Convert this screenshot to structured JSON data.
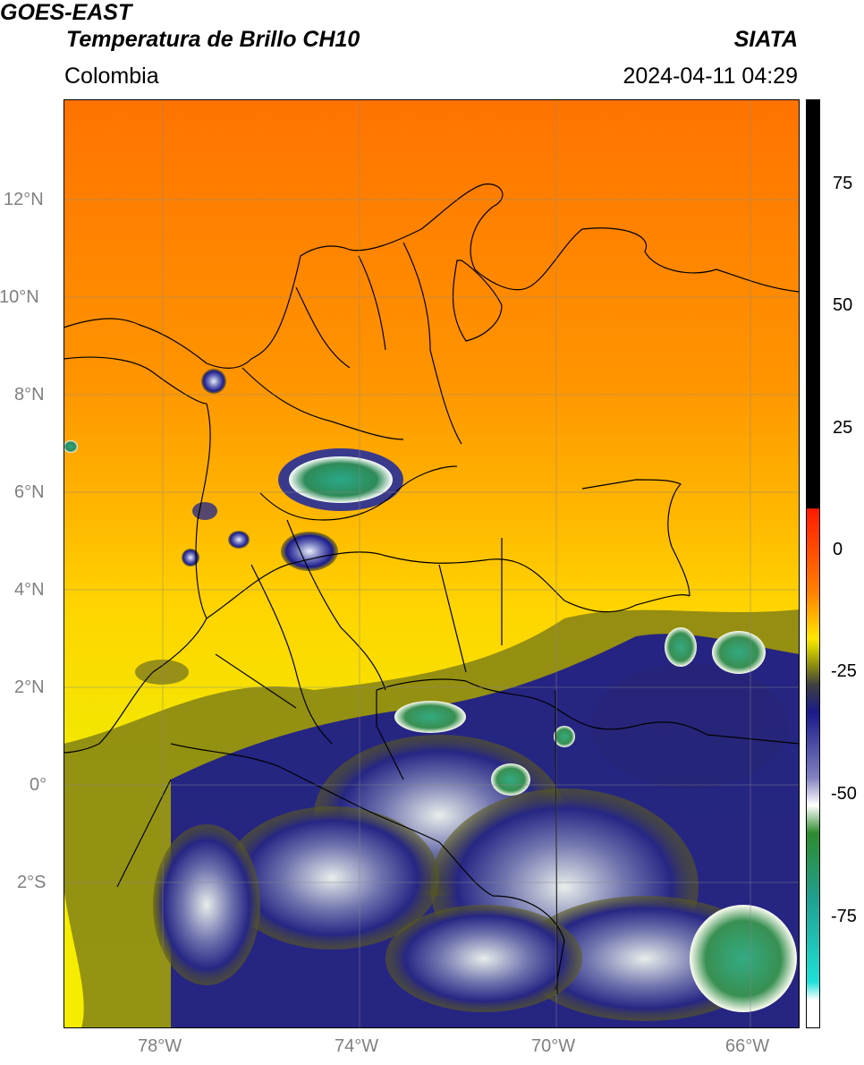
{
  "header": {
    "satellite": "GOES-EAST",
    "product": "Temperatura de Brillo CH10",
    "organization": "SIATA",
    "region": "Colombia",
    "datetime": "2024-04-11 04:29"
  },
  "map": {
    "lat_labels": [
      "12°N",
      "10°N",
      "8°N",
      "6°N",
      "4°N",
      "2°N",
      "0°",
      "2°S"
    ],
    "lon_labels": [
      "78°W",
      "74°W",
      "70°W",
      "66°W"
    ],
    "extent": {
      "lon_min": -79.8,
      "lon_max": -64.8,
      "lat_min": -4.7,
      "lat_max": 14.0
    },
    "gridlines": true
  },
  "colorbar": {
    "ticks": [
      "75",
      "50",
      "25",
      "0",
      "-25",
      "-50",
      "-75"
    ],
    "range": [
      -95,
      90
    ],
    "colors": {
      "warm_black": "#000000",
      "red": "#ff1a00",
      "orange": "#ff7a00",
      "yellow": "#ffe600",
      "olive": "#8a8a10",
      "navy": "#1a1a8a",
      "white": "#ffffff",
      "green": "#2e8b2e",
      "cyan": "#1fe0d8"
    }
  }
}
